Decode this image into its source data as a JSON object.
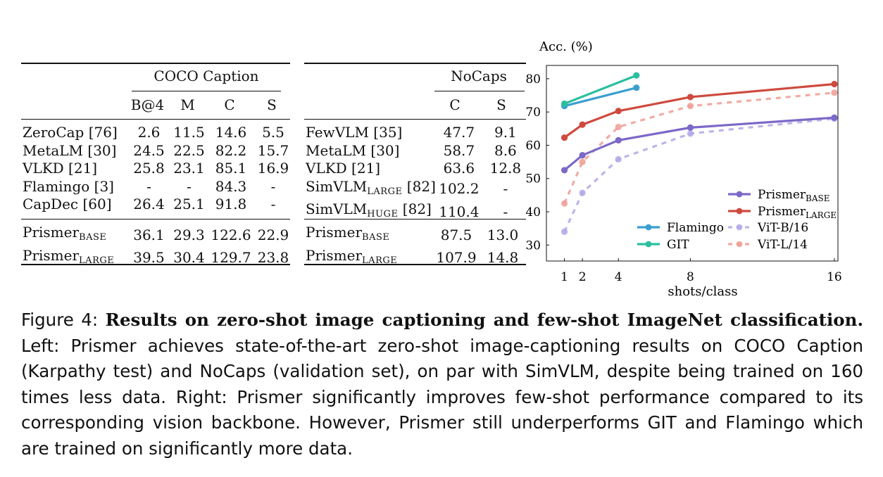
{
  "table_left": {
    "group_header": "COCO Caption",
    "columns": [
      "B@4",
      "M",
      "C",
      "S"
    ],
    "rows": [
      {
        "model": "ZeroCap [76]",
        "sub": "",
        "ref": "",
        "values": [
          "2.6",
          "11.5",
          "14.6",
          "5.5"
        ]
      },
      {
        "model": "MetaLM [30]",
        "sub": "",
        "ref": "",
        "values": [
          "24.5",
          "22.5",
          "82.2",
          "15.7"
        ]
      },
      {
        "model": "VLKD [21]",
        "sub": "",
        "ref": "",
        "values": [
          "25.8",
          "23.1",
          "85.1",
          "16.9"
        ]
      },
      {
        "model": "Flamingo [3]",
        "sub": "",
        "ref": "",
        "values": [
          "-",
          "-",
          "84.3",
          "-"
        ]
      },
      {
        "model": "CapDec [60]",
        "sub": "",
        "ref": "",
        "values": [
          "26.4",
          "25.1",
          "91.8",
          "-"
        ]
      }
    ],
    "ours": [
      {
        "model": "Prismer",
        "sub": "BASE",
        "ref": "",
        "values": [
          "36.1",
          "29.3",
          "122.6",
          "22.9"
        ]
      },
      {
        "model": "Prismer",
        "sub": "LARGE",
        "ref": "",
        "values": [
          "39.5",
          "30.4",
          "129.7",
          "23.8"
        ]
      }
    ]
  },
  "table_right": {
    "group_header": "NoCaps",
    "columns": [
      "C",
      "S"
    ],
    "rows": [
      {
        "model": "FewVLM [35]",
        "sub": "",
        "ref": "",
        "values": [
          "47.7",
          "9.1"
        ]
      },
      {
        "model": "MetaLM [30]",
        "sub": "",
        "ref": "",
        "values": [
          "58.7",
          "8.6"
        ]
      },
      {
        "model": "VLKD [21]",
        "sub": "",
        "ref": "",
        "values": [
          "63.6",
          "12.8"
        ]
      },
      {
        "model": "SimVLM",
        "sub": "LARGE",
        "ref": " [82]",
        "values": [
          "102.2",
          "-"
        ]
      },
      {
        "model": "SimVLM",
        "sub": "HUGE",
        "ref": " [82]",
        "values": [
          "110.4",
          "-"
        ]
      }
    ],
    "ours": [
      {
        "model": "Prismer",
        "sub": "BASE",
        "ref": "",
        "values": [
          "87.5",
          "13.0"
        ]
      },
      {
        "model": "Prismer",
        "sub": "LARGE",
        "ref": "",
        "values": [
          "107.9",
          "14.8"
        ]
      }
    ]
  },
  "chart_data": {
    "type": "line",
    "ylabel": "Acc. (%)",
    "xlabel": "shots/class",
    "x_ticks": [
      1,
      2,
      4,
      8,
      16
    ],
    "y_ticks": [
      30,
      40,
      50,
      60,
      70,
      80
    ],
    "xlim": [
      0,
      16.2
    ],
    "ylim": [
      25.2,
      84
    ],
    "legend_left": "bottom-center",
    "legend_right": "bottom-right",
    "series": [
      {
        "name": "Prismer",
        "sub": "BASE",
        "color": "#7b68c8",
        "dashed": false,
        "x": [
          1,
          2,
          4,
          8,
          16
        ],
        "y": [
          52.5,
          57.0,
          61.5,
          65.3,
          68.3
        ]
      },
      {
        "name": "Prismer",
        "sub": "LARGE",
        "color": "#cf4a3e",
        "dashed": false,
        "x": [
          1,
          2,
          4,
          8,
          16
        ],
        "y": [
          62.3,
          66.2,
          70.3,
          74.5,
          78.4
        ]
      },
      {
        "name": "Flamingo",
        "sub": "",
        "color": "#3a9fcf",
        "dashed": false,
        "x": [
          1,
          5
        ],
        "y": [
          71.8,
          77.3
        ]
      },
      {
        "name": "GIT",
        "sub": "",
        "color": "#2bbf9e",
        "dashed": false,
        "x": [
          1,
          5
        ],
        "y": [
          72.5,
          81.0
        ]
      },
      {
        "name": "ViT-B/16",
        "sub": "",
        "color": "#b1a7e6",
        "dashed": true,
        "x": [
          1,
          2,
          4,
          8,
          16
        ],
        "y": [
          34.0,
          45.7,
          55.8,
          63.5,
          68.0
        ]
      },
      {
        "name": "ViT-L/14",
        "sub": "",
        "color": "#ee9c93",
        "dashed": true,
        "x": [
          1,
          2,
          4,
          8,
          16
        ],
        "y": [
          42.5,
          55.0,
          65.5,
          71.8,
          75.8
        ]
      }
    ]
  },
  "caption": {
    "label": "Figure 4:",
    "title": "Results on zero-shot image captioning and few-shot ImageNet classification.",
    "body": "Left: Prismer achieves state-of-the-art zero-shot image-captioning results on COCO Caption (Karpathy test) and NoCaps (validation set), on par with SimVLM, despite being trained on 160 times less data. Right: Prismer significantly improves few-shot performance compared to its corresponding vision backbone. However, Prismer still underperforms GIT and Flamingo which are trained on significantly more data."
  }
}
